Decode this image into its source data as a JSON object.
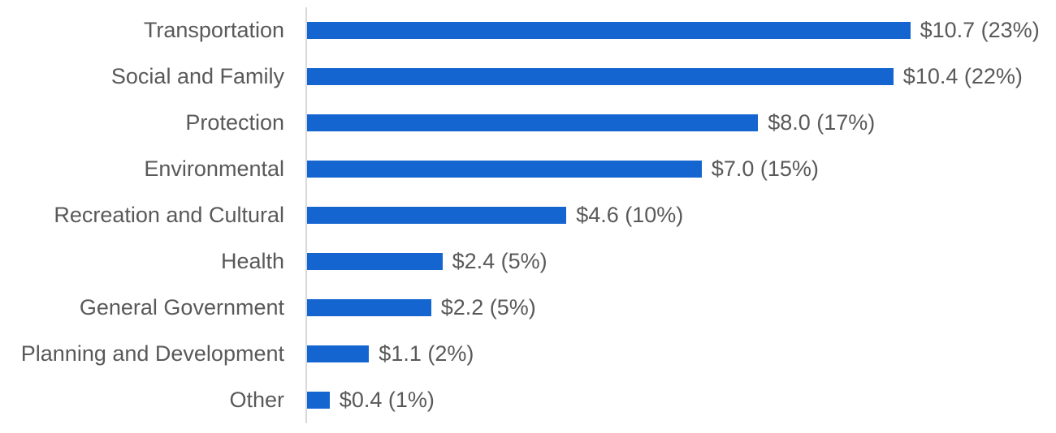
{
  "chart_data": {
    "type": "bar",
    "orientation": "horizontal",
    "title": "",
    "xlabel": "",
    "ylabel": "",
    "grid": false,
    "legend": false,
    "xlim": [
      0,
      13.3
    ],
    "categories": [
      "Transportation",
      "Social and Family",
      "Protection",
      "Environmental",
      "Recreation and Cultural",
      "Health",
      "General Government",
      "Planning and Development",
      "Other"
    ],
    "values": [
      10.7,
      10.4,
      8.0,
      7.0,
      4.6,
      2.4,
      2.2,
      1.1,
      0.4
    ],
    "percents": [
      23,
      22,
      17,
      15,
      10,
      5,
      5,
      2,
      1
    ],
    "value_labels": [
      "$10.7 (23%)",
      "$10.4 (22%)",
      "$8.0 (17%)",
      "$7.0 (15%)",
      "$4.6 (10%)",
      "$2.4 (5%)",
      "$2.2 (5%)",
      "$1.1 (2%)",
      "$0.4 (1%)"
    ],
    "colors": {
      "bar": "#1565d1",
      "label_text": "#595959",
      "axis_line": "#d9d9d9",
      "background": "#ffffff"
    }
  }
}
